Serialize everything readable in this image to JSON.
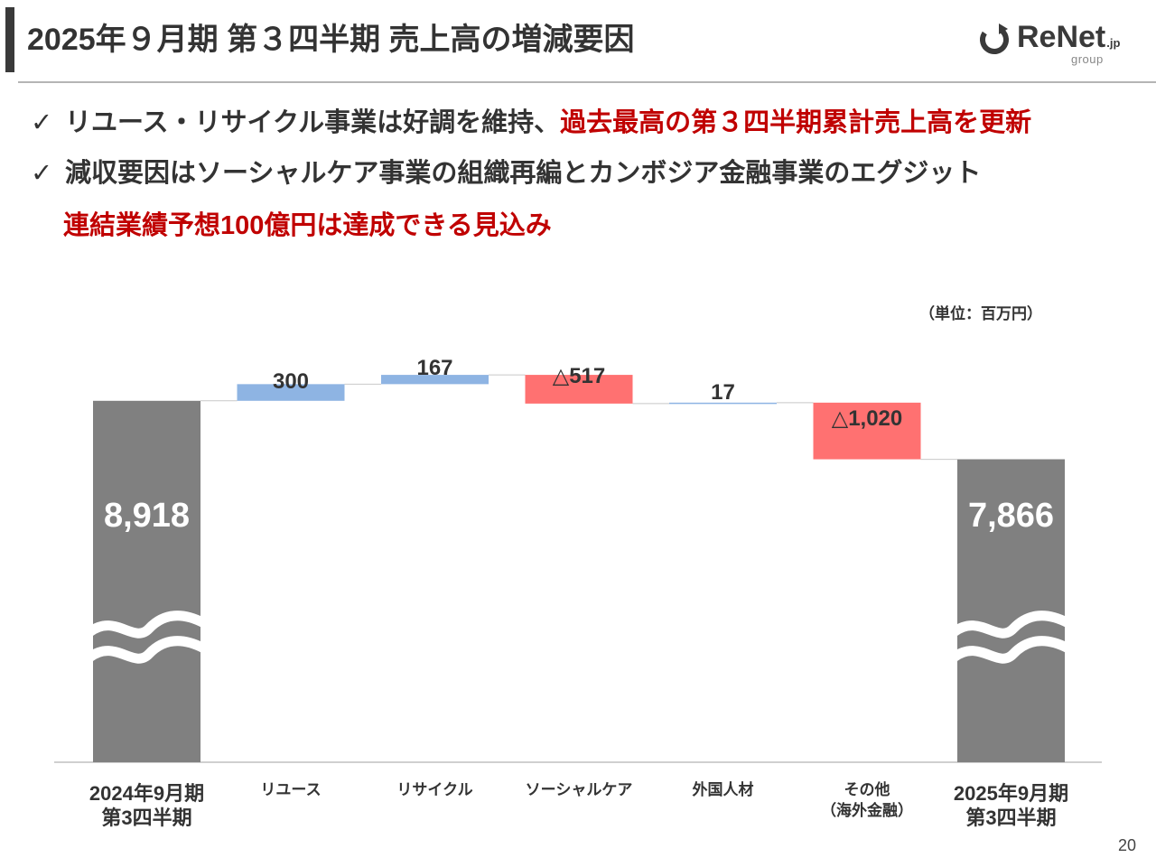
{
  "header": {
    "title": "2025年９月期 第３四半期 売上高の増減要因",
    "logo_main": "ReNet",
    "logo_suffix": ".jp",
    "logo_sub": "group"
  },
  "bullets": [
    {
      "check": "✓",
      "text": "リユース・リサイクル事業は好調を維持、",
      "highlight": "過去最高の第３四半期累計売上高を更新"
    },
    {
      "check": "✓",
      "text": "減収要因はソーシャルケア事業の組織再編とカンボジア金融事業のエグジット",
      "highlight": ""
    }
  ],
  "bullet_third_line": "連結業績予想100億円は達成できる見込み",
  "unit_label": "（単位：百万円）",
  "page_number": "20",
  "colors": {
    "total": "#808080",
    "increase": "#8eb4e3",
    "decrease": "#ff7171",
    "accent_red": "#c00000"
  },
  "chart_data": {
    "type": "waterfall",
    "title": "",
    "unit": "百万円",
    "axis_break": true,
    "categories": [
      [
        "2024年9月期",
        "第3四半期"
      ],
      [
        "リユース"
      ],
      [
        "リサイクル"
      ],
      [
        "ソーシャルケア"
      ],
      [
        "外国人材"
      ],
      [
        "その他",
        "（海外金融）"
      ],
      [
        "2025年9月期",
        "第3四半期"
      ]
    ],
    "kinds": [
      "total",
      "increase",
      "increase",
      "decrease",
      "increase",
      "decrease",
      "total"
    ],
    "values": [
      8918,
      300,
      167,
      -517,
      17,
      -1020,
      7866
    ],
    "labels": [
      "8,918",
      "300",
      "167",
      "△517",
      "17",
      "△1,020",
      "7,866"
    ]
  }
}
